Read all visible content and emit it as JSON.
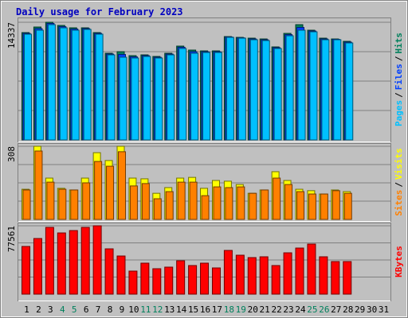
{
  "title": "Daily usage for February 2023",
  "separator": "/",
  "categories": [
    1,
    2,
    3,
    4,
    5,
    6,
    7,
    8,
    9,
    10,
    11,
    12,
    13,
    14,
    15,
    16,
    17,
    18,
    19,
    20,
    21,
    22,
    23,
    24,
    25,
    26,
    27,
    28,
    29,
    30,
    31
  ],
  "category_colors": [
    "#000000",
    "#000000",
    "#000000",
    "#00805c",
    "#00805c",
    "#000000",
    "#000000",
    "#000000",
    "#000000",
    "#000000",
    "#00805c",
    "#00805c",
    "#000000",
    "#000000",
    "#000000",
    "#000000",
    "#000000",
    "#00805c",
    "#00805c",
    "#000000",
    "#000000",
    "#000000",
    "#000000",
    "#000000",
    "#00805c",
    "#00805c",
    "#000000",
    "#000000",
    "#000000",
    "#000000",
    "#000000"
  ],
  "chart_data": [
    {
      "type": "bar",
      "ylim": [
        0,
        14337
      ],
      "yticks": [
        14337
      ],
      "grid": true,
      "series": [
        {
          "name": "Hits",
          "color": "#00805c",
          "values": [
            13077,
            13756,
            14337,
            13949,
            13659,
            13659,
            13077,
            10559,
            10753,
            10268,
            10365,
            10171,
            10559,
            11431,
            10946,
            10849,
            10849,
            12593,
            12496,
            12399,
            12302,
            11334,
            12981,
            14046,
            13368,
            12399,
            12302,
            12012,
            null,
            null,
            null
          ]
        },
        {
          "name": "Files",
          "color": "#0040ff",
          "values": [
            12980,
            13560,
            14190,
            13800,
            13510,
            13560,
            12980,
            10460,
            10410,
            10120,
            10270,
            10070,
            10460,
            11290,
            10750,
            10750,
            10750,
            12540,
            12440,
            12300,
            12200,
            11240,
            12830,
            13700,
            13270,
            12300,
            12250,
            11910,
            null,
            null,
            null
          ]
        },
        {
          "name": "Pages",
          "color": "#00c0ff",
          "values": [
            12884,
            13368,
            14046,
            13659,
            13368,
            13465,
            12884,
            10365,
            10074,
            9978,
            10171,
            9978,
            10365,
            11140,
            10559,
            10656,
            10656,
            12496,
            12399,
            12206,
            12109,
            11140,
            12690,
            13368,
            13174,
            12206,
            12206,
            11818,
            null,
            null,
            null
          ]
        }
      ]
    },
    {
      "type": "bar",
      "ylim": [
        0,
        308
      ],
      "yticks": [
        308
      ],
      "grid": true,
      "series": [
        {
          "name": "Visits",
          "color": "#ffff00",
          "values": [
            127,
            308,
            174,
            131,
            124,
            174,
            281,
            248,
            308,
            174,
            171,
            110,
            134,
            174,
            177,
            131,
            164,
            161,
            147,
            110,
            124,
            201,
            164,
            127,
            121,
            107,
            124,
            117,
            null,
            null,
            null
          ]
        },
        {
          "name": "Sites",
          "color": "#ff8000",
          "values": [
            124,
            288,
            157,
            127,
            124,
            154,
            244,
            224,
            285,
            141,
            151,
            87,
            117,
            157,
            157,
            100,
            137,
            134,
            137,
            110,
            124,
            174,
            147,
            117,
            107,
            107,
            121,
            110,
            null,
            null,
            null
          ]
        }
      ]
    },
    {
      "type": "bar",
      "ylim": [
        0,
        77561
      ],
      "yticks": [
        77561
      ],
      "grid": true,
      "series": [
        {
          "name": "KBytes",
          "color": "#ff0000",
          "values": [
            54114,
            63133,
            75760,
            69446,
            72152,
            75760,
            77561,
            51408,
            43291,
            26155,
            35174,
            28861,
            30665,
            37880,
            32468,
            35174,
            29763,
            49605,
            44193,
            41487,
            42389,
            32468,
            46899,
            52310,
            56820,
            42389,
            36978,
            36978,
            null,
            null,
            null
          ]
        }
      ]
    }
  ]
}
